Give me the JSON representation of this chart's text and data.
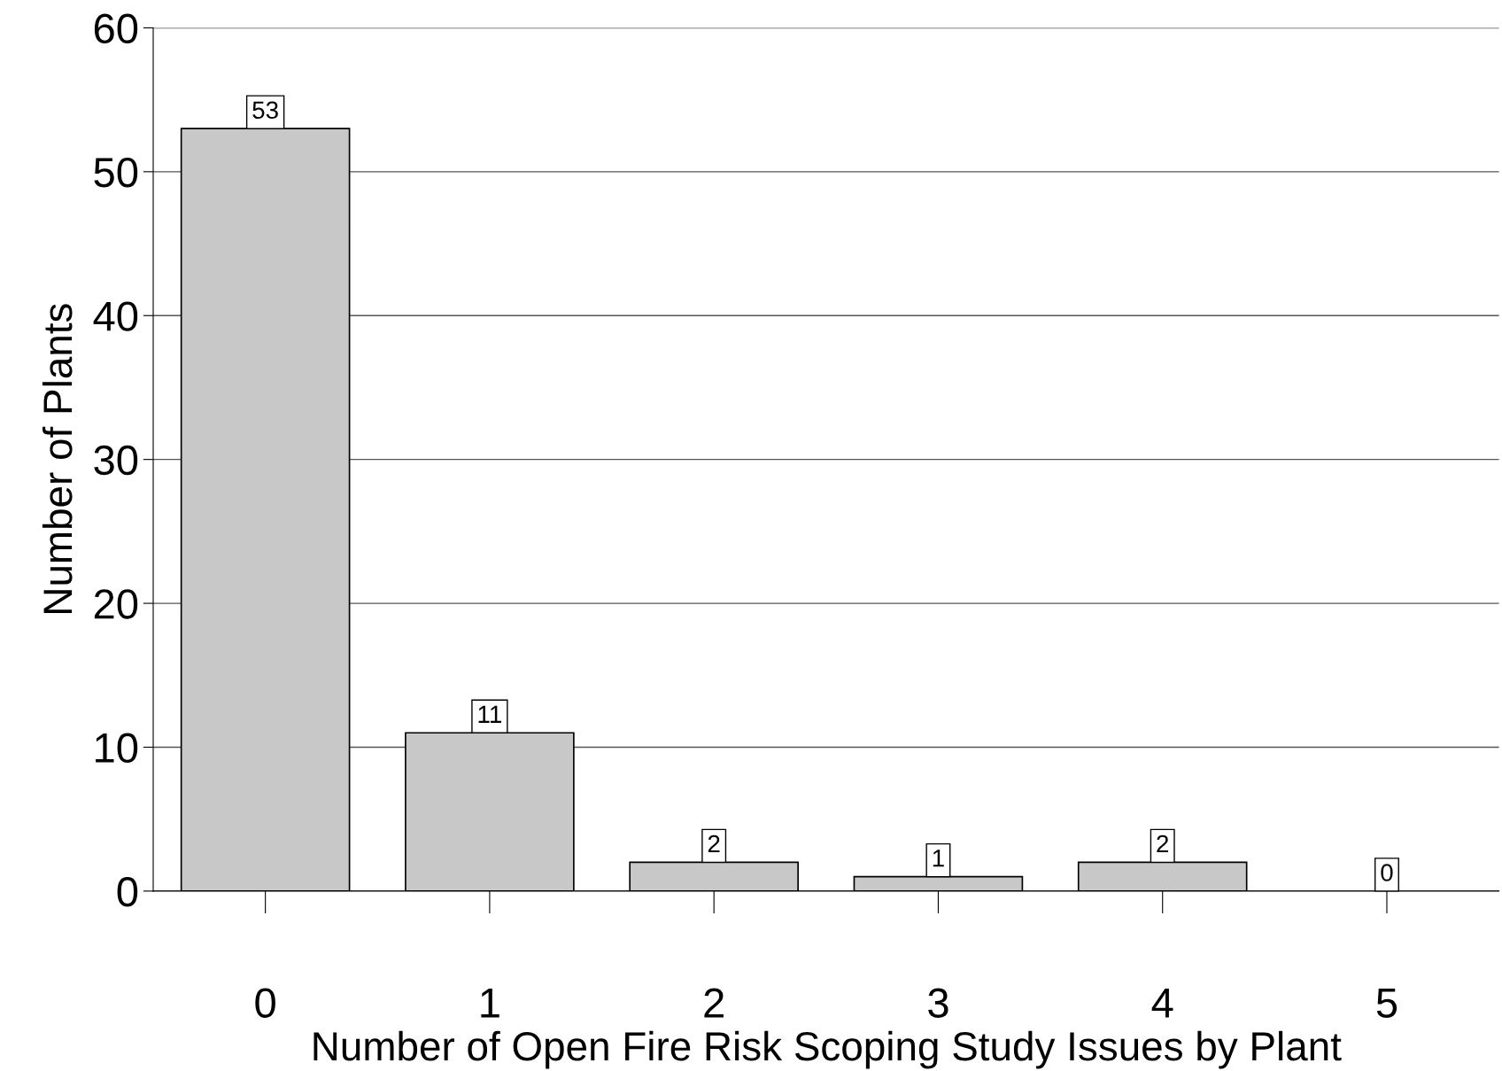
{
  "chart_data": {
    "type": "bar",
    "xlabel": "Number of Open Fire Risk Scoping Study Issues by Plant",
    "ylabel": "Number of Plants",
    "categories": [
      "0",
      "1",
      "2",
      "3",
      "4",
      "5"
    ],
    "values": [
      53,
      11,
      2,
      1,
      2,
      0
    ],
    "color": "#c8c8c8",
    "ylim": [
      0,
      60
    ],
    "yticks": [
      0,
      10,
      20,
      30,
      40,
      50,
      60
    ],
    "grid": "y",
    "data_labels": true
  }
}
